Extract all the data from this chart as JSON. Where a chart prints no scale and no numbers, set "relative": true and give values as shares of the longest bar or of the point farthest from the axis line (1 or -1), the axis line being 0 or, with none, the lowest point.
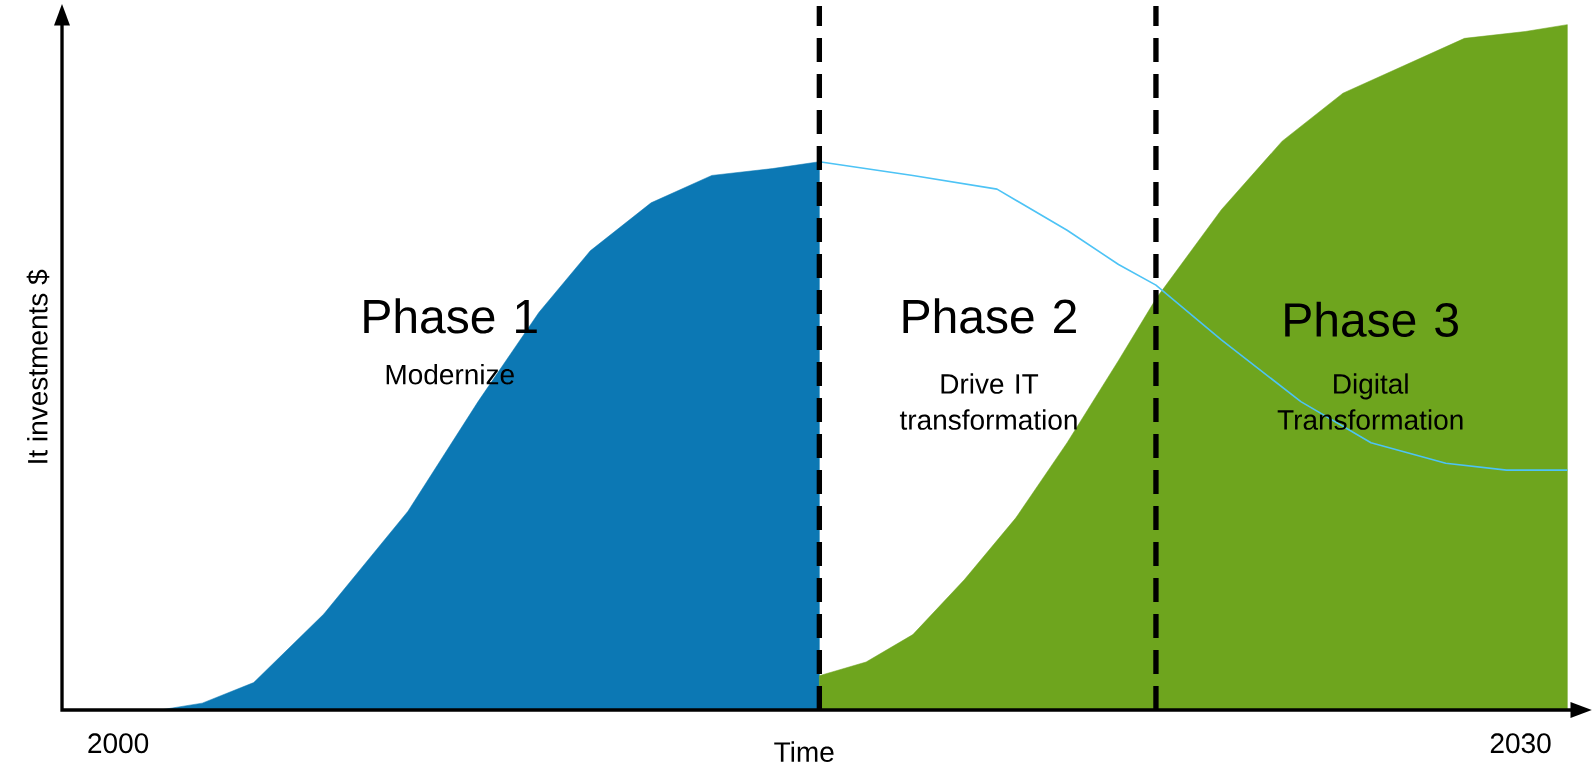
{
  "chart_data": {
    "type": "area",
    "relative": true,
    "xlabel": "Time",
    "ylabel": "It investments $",
    "xlim": [
      1998.8,
      2031.2
    ],
    "xticks": [
      2000,
      2030
    ],
    "series": [
      {
        "color": "#0c78b4",
        "x": [
          2000.9,
          2001.8,
          2002.9,
          2004.4,
          2006.2,
          2007.7,
          2009.0,
          2010.1,
          2011.4,
          2012.7,
          2014.0,
          2015.0
        ],
        "values": [
          0,
          0.01,
          0.04,
          0.14,
          0.29,
          0.45,
          0.58,
          0.67,
          0.74,
          0.78,
          0.79,
          0.8
        ]
      },
      {
        "color": "#6ea51e",
        "x": [
          2015.0,
          2016.0,
          2017.0,
          2018.1,
          2019.2,
          2020.3,
          2021.4,
          2022.2,
          2023.6,
          2024.9,
          2026.2,
          2027.5,
          2028.8,
          2030.1,
          2031.0
        ],
        "values": [
          0.05,
          0.07,
          0.11,
          0.19,
          0.28,
          0.39,
          0.51,
          0.6,
          0.73,
          0.83,
          0.9,
          0.94,
          0.98,
          0.99,
          1
        ]
      },
      {
        "type": "line",
        "color": "#4dc3f5",
        "x": [
          2015.0,
          2017.0,
          2018.8,
          2020.3,
          2021.4,
          2022.2,
          2023.6,
          2025.3,
          2026.8,
          2028.4,
          2029.7,
          2031.0
        ],
        "values": [
          0.8,
          0.78,
          0.76,
          0.7,
          0.65,
          0.62,
          0.54,
          0.45,
          0.39,
          0.36,
          0.35,
          0.35
        ]
      }
    ],
    "ref_lines": [
      {
        "axis": "x",
        "value": 2015.0,
        "color": "#000000",
        "line_style": "dashed"
      },
      {
        "axis": "x",
        "value": 2022.2,
        "color": "#000000",
        "line_style": "dashed"
      }
    ],
    "annotations": [
      "Phase 1",
      "Modernize",
      "Phase 2",
      "Drive IT transformation",
      "Phase 3",
      "Digital Transformation"
    ]
  }
}
